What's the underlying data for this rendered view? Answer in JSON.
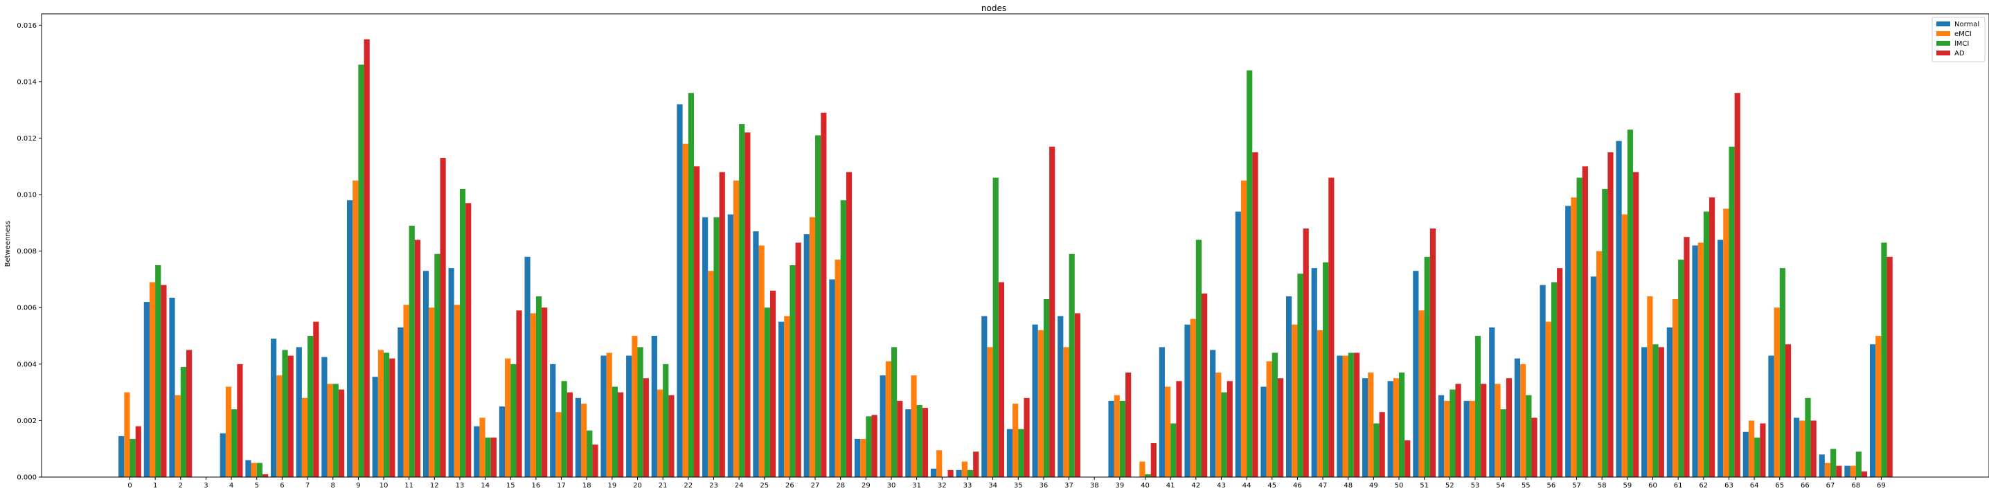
{
  "chart_data": {
    "type": "bar",
    "title": "nodes",
    "xlabel": "",
    "ylabel": "Betweenness",
    "ylim": [
      0,
      0.0164
    ],
    "yticks": [
      "0.000",
      "0.002",
      "0.004",
      "0.006",
      "0.008",
      "0.010",
      "0.012",
      "0.014",
      "0.016"
    ],
    "ytick_values": [
      0,
      0.002,
      0.004,
      0.006,
      0.008,
      0.01,
      0.012,
      0.014,
      0.016
    ],
    "grid": false,
    "legend_position": "top-right",
    "categories": [
      "0",
      "1",
      "2",
      "3",
      "4",
      "5",
      "6",
      "7",
      "8",
      "9",
      "10",
      "11",
      "12",
      "13",
      "14",
      "15",
      "16",
      "17",
      "18",
      "19",
      "20",
      "21",
      "22",
      "23",
      "24",
      "25",
      "26",
      "27",
      "28",
      "29",
      "30",
      "31",
      "32",
      "33",
      "34",
      "35",
      "36",
      "37",
      "38",
      "39",
      "40",
      "41",
      "42",
      "43",
      "44",
      "45",
      "46",
      "47",
      "48",
      "49",
      "50",
      "51",
      "52",
      "53",
      "54",
      "55",
      "56",
      "57",
      "58",
      "59",
      "60",
      "61",
      "62",
      "63",
      "64",
      "65",
      "66",
      "67",
      "68",
      "69"
    ],
    "series": [
      {
        "name": "Normal",
        "color": "#1f77b4",
        "values": [
          0.00145,
          0.0062,
          0.00635,
          0,
          0.00155,
          0.0006,
          0.0049,
          0.0046,
          0.00425,
          0.0098,
          0.00355,
          0.0053,
          0.0073,
          0.0074,
          0.0018,
          0.0025,
          0.0078,
          0.004,
          0.0028,
          0.0043,
          0.0043,
          0.005,
          0.0132,
          0.0092,
          0.0093,
          0.0087,
          0.0055,
          0.0086,
          0.007,
          0.00135,
          0.0036,
          0.0024,
          0.0003,
          0.00025,
          0.0057,
          0.0017,
          0.0054,
          0.0057,
          0,
          0.0027,
          0,
          0.0046,
          0.0054,
          0.0045,
          0.0094,
          0.0032,
          0.0064,
          0.0074,
          0.0043,
          0.0035,
          0.0034,
          0.0073,
          0.0029,
          0.0027,
          0.0053,
          0.0042,
          0.0068,
          0.0096,
          0.0071,
          0.0119,
          0.0046,
          0.0053,
          0.0082,
          0.0084,
          0.0016,
          0.0043,
          0.0021,
          0.0008,
          0.0004,
          0.0047
        ]
      },
      {
        "name": "eMCI",
        "color": "#ff7f0e",
        "values": [
          0.003,
          0.0069,
          0.0029,
          0,
          0.0032,
          0.0005,
          0.0036,
          0.0028,
          0.0033,
          0.0105,
          0.0045,
          0.0061,
          0.006,
          0.0061,
          0.0021,
          0.0042,
          0.0058,
          0.0023,
          0.0026,
          0.0044,
          0.005,
          0.0031,
          0.0118,
          0.0073,
          0.0105,
          0.0082,
          0.0057,
          0.0092,
          0.0077,
          0.00135,
          0.0041,
          0.0036,
          0.00095,
          0.00055,
          0.0046,
          0.0026,
          0.0052,
          0.0046,
          0,
          0.0029,
          0.00055,
          0.0032,
          0.0056,
          0.0037,
          0.0105,
          0.0041,
          0.0054,
          0.0052,
          0.0043,
          0.0037,
          0.0035,
          0.0059,
          0.0027,
          0.0027,
          0.0033,
          0.004,
          0.0055,
          0.0099,
          0.008,
          0.0093,
          0.0064,
          0.0063,
          0.0083,
          0.0095,
          0.002,
          0.006,
          0.002,
          0.0005,
          0.0004,
          0.005
        ]
      },
      {
        "name": "lMCI",
        "color": "#2ca02c",
        "values": [
          0.00135,
          0.0075,
          0.0039,
          0,
          0.0024,
          0.0005,
          0.0045,
          0.005,
          0.0033,
          0.0146,
          0.0044,
          0.0089,
          0.0079,
          0.0102,
          0.0014,
          0.004,
          0.0064,
          0.0034,
          0.00165,
          0.0032,
          0.0046,
          0.004,
          0.0136,
          0.0092,
          0.0125,
          0.006,
          0.0075,
          0.0121,
          0.0098,
          0.00215,
          0.0046,
          0.00255,
          0,
          0.00025,
          0.0106,
          0.0017,
          0.0063,
          0.0079,
          0,
          0.0027,
          0.0001,
          0.0019,
          0.0084,
          0.003,
          0.0144,
          0.0044,
          0.0072,
          0.0076,
          0.0044,
          0.0019,
          0.0037,
          0.0078,
          0.0031,
          0.005,
          0.0024,
          0.0029,
          0.0069,
          0.0106,
          0.0102,
          0.0123,
          0.0047,
          0.0077,
          0.0094,
          0.0117,
          0.0014,
          0.0074,
          0.0028,
          0.001,
          0.0009,
          0.0083
        ]
      },
      {
        "name": "AD",
        "color": "#d62728",
        "values": [
          0.0018,
          0.0068,
          0.0045,
          0,
          0.004,
          0.0001,
          0.0043,
          0.0055,
          0.0031,
          0.0155,
          0.0042,
          0.0084,
          0.0113,
          0.0097,
          0.0014,
          0.0059,
          0.006,
          0.003,
          0.00115,
          0.003,
          0.0035,
          0.0029,
          0.011,
          0.0108,
          0.0122,
          0.0066,
          0.0083,
          0.0129,
          0.0108,
          0.0022,
          0.0027,
          0.00245,
          0.00025,
          0.0009,
          0.0069,
          0.0028,
          0.0117,
          0.0058,
          0,
          0.0037,
          0.0012,
          0.0034,
          0.0065,
          0.0034,
          0.0115,
          0.0035,
          0.0088,
          0.0106,
          0.0044,
          0.0023,
          0.0013,
          0.0088,
          0.0033,
          0.0033,
          0.0035,
          0.0021,
          0.0074,
          0.011,
          0.0115,
          0.0108,
          0.0046,
          0.0085,
          0.0099,
          0.0136,
          0.0019,
          0.0047,
          0.002,
          0.0004,
          0.0002,
          0.0078
        ]
      }
    ]
  }
}
